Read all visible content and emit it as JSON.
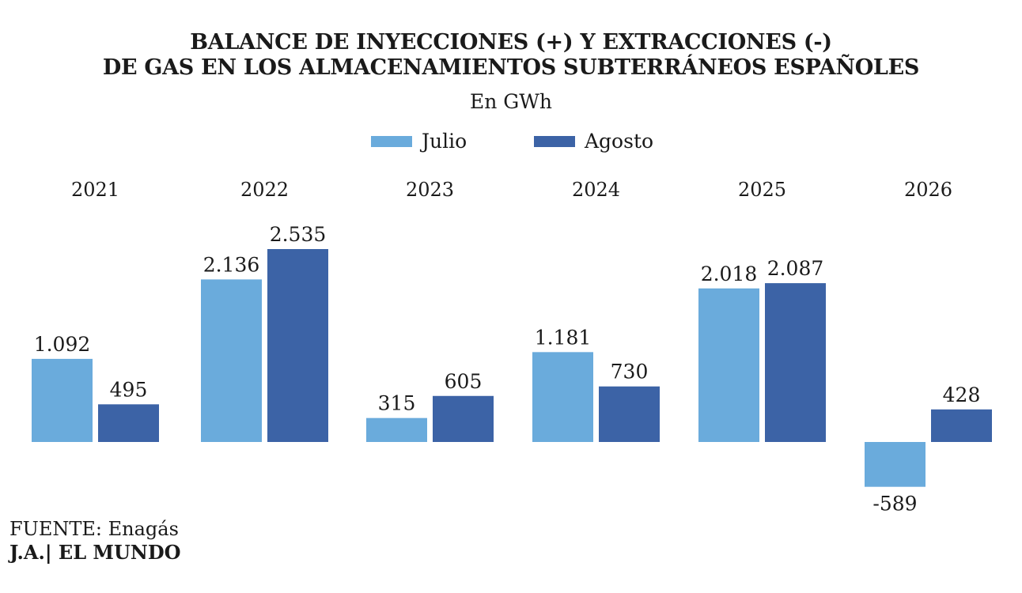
{
  "title_line1": "BALANCE DE INYECCIONES (+) Y EXTRACCIONES (-)",
  "title_line2": "DE GAS EN LOS ALMACENAMIENTOS SUBTERRÁNEOS ESPAÑOLES",
  "subtitle": "En GWh",
  "legend": [
    {
      "label": "Julio",
      "color": "#6aabdc"
    },
    {
      "label": "Agosto",
      "color": "#3c63a6"
    }
  ],
  "source": "FUENTE: Enagás",
  "credit": "J.A.| EL MUNDO",
  "chart_data": {
    "type": "bar",
    "categories": [
      "2021",
      "2022",
      "2023",
      "2024",
      "2025",
      "2026"
    ],
    "series": [
      {
        "name": "Julio",
        "values": [
          1092,
          2136,
          315,
          1181,
          2018,
          -589
        ],
        "labels": [
          "1.092",
          "2.136",
          "315",
          "1.181",
          "2.018",
          "-589"
        ],
        "color": "#6aabdc"
      },
      {
        "name": "Agosto",
        "values": [
          495,
          2535,
          605,
          730,
          2087,
          428
        ],
        "labels": [
          "495",
          "2.535",
          "605",
          "730",
          "2.087",
          "428"
        ],
        "color": "#3c63a6"
      }
    ],
    "title": "BALANCE DE INYECCIONES (+) Y EXTRACCIONES (-) DE GAS EN LOS ALMACENAMIENTOS SUBTERRÁNEOS ESPAÑOLES",
    "unit": "GWh",
    "grid": false,
    "legend_position": "top-center"
  }
}
